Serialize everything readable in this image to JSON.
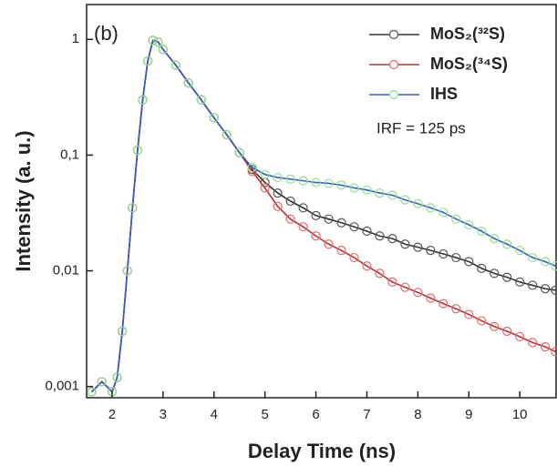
{
  "chart_data": {
    "type": "line",
    "xlabel": "Delay Time (ns)",
    "ylabel": "Intensity (a. u.)",
    "annotations": [
      "(b)",
      "IRF = 125 ps"
    ],
    "x": [
      1.6,
      1.8,
      2.0,
      2.1,
      2.2,
      2.3,
      2.4,
      2.5,
      2.6,
      2.7,
      2.8,
      2.9,
      3.0,
      3.25,
      3.5,
      3.75,
      4.0,
      4.25,
      4.5,
      4.75,
      5.0,
      5.25,
      5.5,
      5.75,
      6.0,
      6.25,
      6.5,
      6.75,
      7.0,
      7.25,
      7.5,
      7.75,
      8.0,
      8.25,
      8.5,
      8.75,
      9.0,
      9.25,
      9.5,
      9.75,
      10.0,
      10.25,
      10.5,
      10.7
    ],
    "series": [
      {
        "name": "MoS₂(³²S)",
        "color": "#333333",
        "marker_color": "#555555",
        "values": [
          0.0009,
          0.0011,
          0.0009,
          0.0012,
          0.003,
          0.01,
          0.035,
          0.11,
          0.3,
          0.65,
          0.98,
          0.95,
          0.82,
          0.6,
          0.42,
          0.3,
          0.21,
          0.15,
          0.105,
          0.075,
          0.058,
          0.047,
          0.04,
          0.035,
          0.03,
          0.028,
          0.026,
          0.024,
          0.022,
          0.02,
          0.019,
          0.017,
          0.016,
          0.015,
          0.014,
          0.013,
          0.012,
          0.0105,
          0.0095,
          0.0088,
          0.008,
          0.0075,
          0.007,
          0.0068
        ]
      },
      {
        "name": "MoS₂(³⁴S)",
        "color": "#c0302f",
        "marker_color": "#e06a6a",
        "values": [
          0.0009,
          0.0011,
          0.0009,
          0.0012,
          0.003,
          0.01,
          0.035,
          0.11,
          0.3,
          0.65,
          0.98,
          0.95,
          0.82,
          0.6,
          0.42,
          0.3,
          0.21,
          0.15,
          0.105,
          0.072,
          0.052,
          0.036,
          0.028,
          0.024,
          0.02,
          0.017,
          0.015,
          0.013,
          0.011,
          0.0095,
          0.008,
          0.0072,
          0.0065,
          0.0058,
          0.0052,
          0.0047,
          0.0042,
          0.0037,
          0.0033,
          0.003,
          0.0027,
          0.0024,
          0.0022,
          0.002
        ]
      },
      {
        "name": "IHS",
        "color": "#2f5fc0",
        "marker_color": "#8fe08f",
        "values": [
          0.0009,
          0.0011,
          0.0009,
          0.0012,
          0.003,
          0.01,
          0.035,
          0.11,
          0.3,
          0.65,
          0.98,
          0.95,
          0.82,
          0.6,
          0.42,
          0.3,
          0.21,
          0.15,
          0.105,
          0.078,
          0.068,
          0.064,
          0.062,
          0.06,
          0.058,
          0.057,
          0.055,
          0.052,
          0.05,
          0.047,
          0.045,
          0.041,
          0.038,
          0.035,
          0.032,
          0.028,
          0.025,
          0.022,
          0.019,
          0.017,
          0.015,
          0.013,
          0.012,
          0.011
        ]
      }
    ],
    "xlim": [
      1.5,
      10.73
    ],
    "xticks": [
      2,
      3,
      4,
      5,
      6,
      7,
      8,
      9,
      10
    ],
    "ylim": [
      0.0008,
      2
    ],
    "yscale": "log",
    "yticks": [
      {
        "value": 0.001,
        "label": "0,001"
      },
      {
        "value": 0.01,
        "label": "0,01"
      },
      {
        "value": 0.1,
        "label": "0,1"
      },
      1
    ],
    "legend": "upper right"
  }
}
